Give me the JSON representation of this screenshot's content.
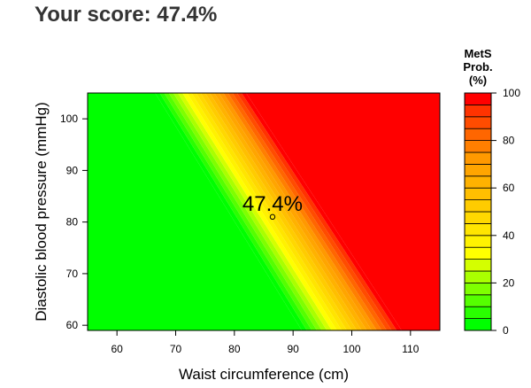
{
  "score": {
    "title": "Your score: 47.4%"
  },
  "chart_data": {
    "type": "heatmap",
    "title": "",
    "xlabel": "Waist circumference (cm)",
    "ylabel": "Diastolic blood pressure (mmHg)",
    "xlim": [
      55,
      115
    ],
    "ylim": [
      59,
      105
    ],
    "xticks": [
      60,
      70,
      80,
      90,
      100,
      110
    ],
    "yticks": [
      60,
      70,
      80,
      90,
      100
    ],
    "grid": false,
    "point": {
      "x": 86.5,
      "y": 81,
      "label": "47.4%"
    },
    "color_scale": {
      "title_lines": [
        "MetS",
        "Prob.",
        "(%)"
      ],
      "min": 0,
      "max": 100,
      "ticks": [
        0,
        20,
        40,
        60,
        80,
        100
      ],
      "levels": 20,
      "colors": [
        "#00ff00",
        "#2aff00",
        "#55ff00",
        "#7fff00",
        "#aaff00",
        "#d4ff00",
        "#ffff00",
        "#fff200",
        "#ffe500",
        "#ffd800",
        "#ffcc00",
        "#ffbf00",
        "#ffb200",
        "#ffa500",
        "#ff9900",
        "#ff7f00",
        "#ff6600",
        "#ff4c00",
        "#ff3300",
        "#ff0000"
      ]
    },
    "contour_lines": {
      "description": "Probability bands run diagonally: lower-left green, upper-right red.",
      "p0": [
        {
          "x": 66.5,
          "y": 105
        },
        {
          "x": 91.5,
          "y": 59
        }
      ],
      "p50": [
        {
          "x": 76.5,
          "y": 105
        },
        {
          "x": 98.5,
          "y": 59
        }
      ],
      "p100": [
        {
          "x": 82,
          "y": 105
        },
        {
          "x": 108.5,
          "y": 59
        }
      ]
    }
  }
}
